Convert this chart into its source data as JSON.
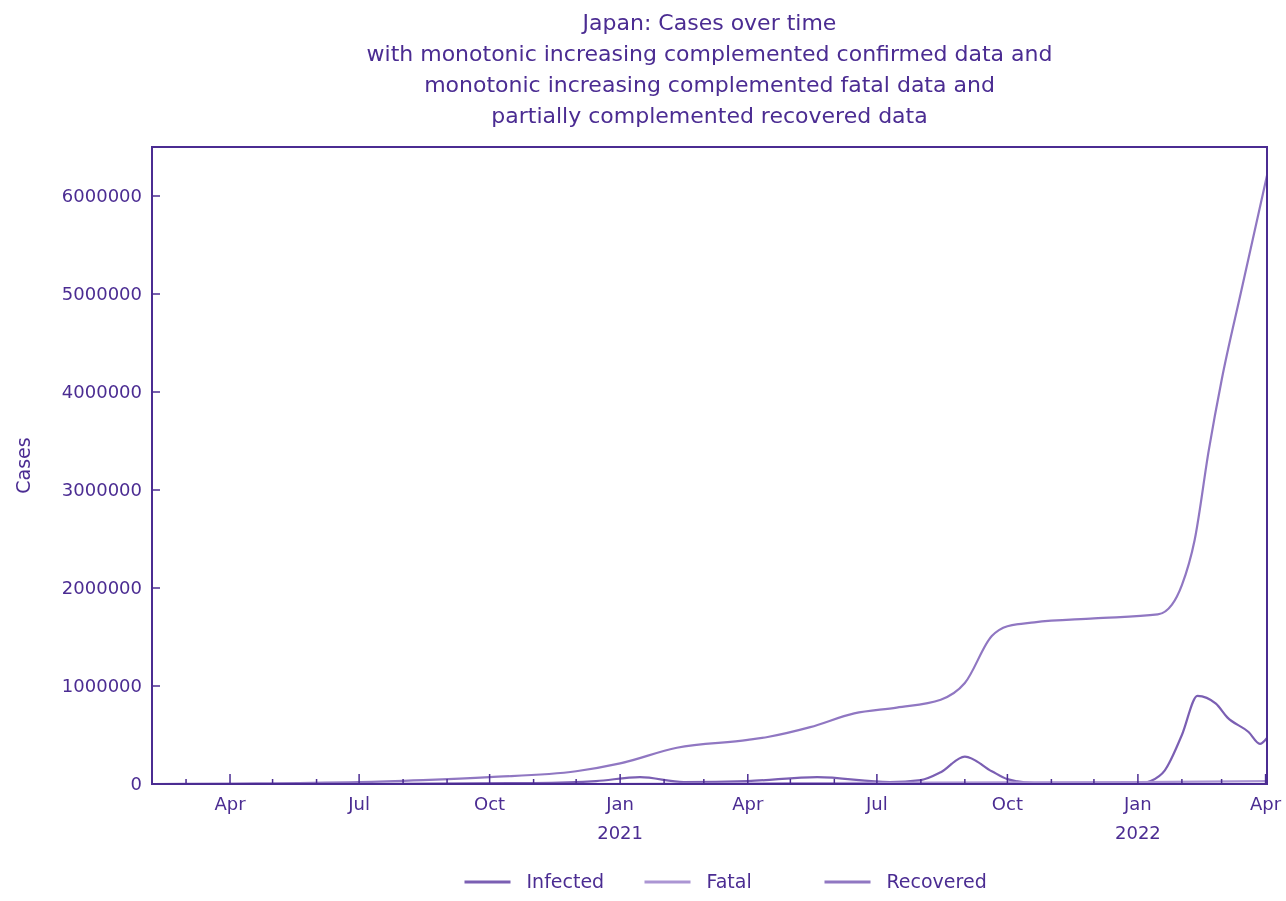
{
  "chart_data": {
    "type": "line",
    "title": "Japan: Cases over time\nwith monotonic increasing complemented confirmed data and\nmonotonic increasing complemented fatal data and\npartially complemented recovered data",
    "ylabel": "Cases",
    "xlim": [
      "2020-02-06",
      "2022-04-02"
    ],
    "ylim": [
      0,
      6500000
    ],
    "yticks": [
      0,
      1000000,
      2000000,
      3000000,
      4000000,
      5000000,
      6000000
    ],
    "xticks": [
      {
        "value": "2020-03-01",
        "label": null
      },
      {
        "value": "2020-04-01",
        "label": "Apr"
      },
      {
        "value": "2020-05-01",
        "label": null
      },
      {
        "value": "2020-06-01",
        "label": null
      },
      {
        "value": "2020-07-01",
        "label": "Jul"
      },
      {
        "value": "2020-08-01",
        "label": null
      },
      {
        "value": "2020-09-01",
        "label": null
      },
      {
        "value": "2020-10-01",
        "label": "Oct"
      },
      {
        "value": "2020-11-01",
        "label": null
      },
      {
        "value": "2020-12-01",
        "label": null
      },
      {
        "value": "2021-01-01",
        "label": "Jan\n2021"
      },
      {
        "value": "2021-02-01",
        "label": null
      },
      {
        "value": "2021-03-01",
        "label": null
      },
      {
        "value": "2021-04-01",
        "label": "Apr"
      },
      {
        "value": "2021-05-01",
        "label": null
      },
      {
        "value": "2021-06-01",
        "label": null
      },
      {
        "value": "2021-07-01",
        "label": "Jul"
      },
      {
        "value": "2021-08-01",
        "label": null
      },
      {
        "value": "2021-09-01",
        "label": null
      },
      {
        "value": "2021-10-01",
        "label": "Oct"
      },
      {
        "value": "2021-11-01",
        "label": null
      },
      {
        "value": "2021-12-01",
        "label": null
      },
      {
        "value": "2022-01-01",
        "label": "Jan\n2022"
      },
      {
        "value": "2022-02-01",
        "label": null
      },
      {
        "value": "2022-03-01",
        "label": null
      },
      {
        "value": "2022-04-01",
        "label": "Apr"
      }
    ],
    "legend": "bottom",
    "grid": false,
    "marker": "none",
    "line_style": "solid",
    "series": [
      {
        "name": "Infected",
        "color": "#7b5fb3",
        "x": [
          "2020-02-07",
          "2020-07-01",
          "2020-11-01",
          "2020-12-15",
          "2021-01-15",
          "2021-02-15",
          "2021-04-01",
          "2021-05-20",
          "2021-07-10",
          "2021-08-01",
          "2021-08-15",
          "2021-09-01",
          "2021-09-20",
          "2021-10-01",
          "2021-10-20",
          "2022-01-01",
          "2022-01-10",
          "2022-01-20",
          "2022-02-01",
          "2022-02-12",
          "2022-02-25",
          "2022-03-05",
          "2022-03-20",
          "2022-03-28",
          "2022-04-02"
        ],
        "values": [
          0,
          0,
          10000,
          30000,
          70000,
          20000,
          30000,
          70000,
          20000,
          40000,
          120000,
          280000,
          130000,
          50000,
          10000,
          0,
          30000,
          140000,
          500000,
          900000,
          820000,
          680000,
          530000,
          410000,
          470000
        ]
      },
      {
        "name": "Fatal",
        "color": "#ab95d3",
        "x": [
          "2020-02-07",
          "2020-12-01",
          "2021-06-01",
          "2022-01-01",
          "2022-04-02"
        ],
        "values": [
          0,
          0,
          10000,
          20000,
          30000
        ]
      },
      {
        "name": "Recovered",
        "color": "#9077c2",
        "x": [
          "2020-02-07",
          "2020-07-01",
          "2020-08-15",
          "2020-10-01",
          "2020-12-01",
          "2021-01-01",
          "2021-02-10",
          "2021-04-01",
          "2021-04-15",
          "2021-05-15",
          "2021-06-15",
          "2021-07-15",
          "2021-08-15",
          "2021-09-01",
          "2021-09-20",
          "2021-10-01",
          "2021-10-20",
          "2021-12-01",
          "2022-01-15",
          "2022-01-25",
          "2022-02-01",
          "2022-02-10",
          "2022-02-20",
          "2022-03-01",
          "2022-03-15",
          "2022-04-02"
        ],
        "values": [
          0,
          20000,
          40000,
          70000,
          130000,
          210000,
          370000,
          450000,
          480000,
          580000,
          720000,
          780000,
          860000,
          1030000,
          1510000,
          1610000,
          1650000,
          1690000,
          1730000,
          1830000,
          2030000,
          2490000,
          3410000,
          4120000,
          5040000,
          6210000
        ]
      }
    ]
  }
}
